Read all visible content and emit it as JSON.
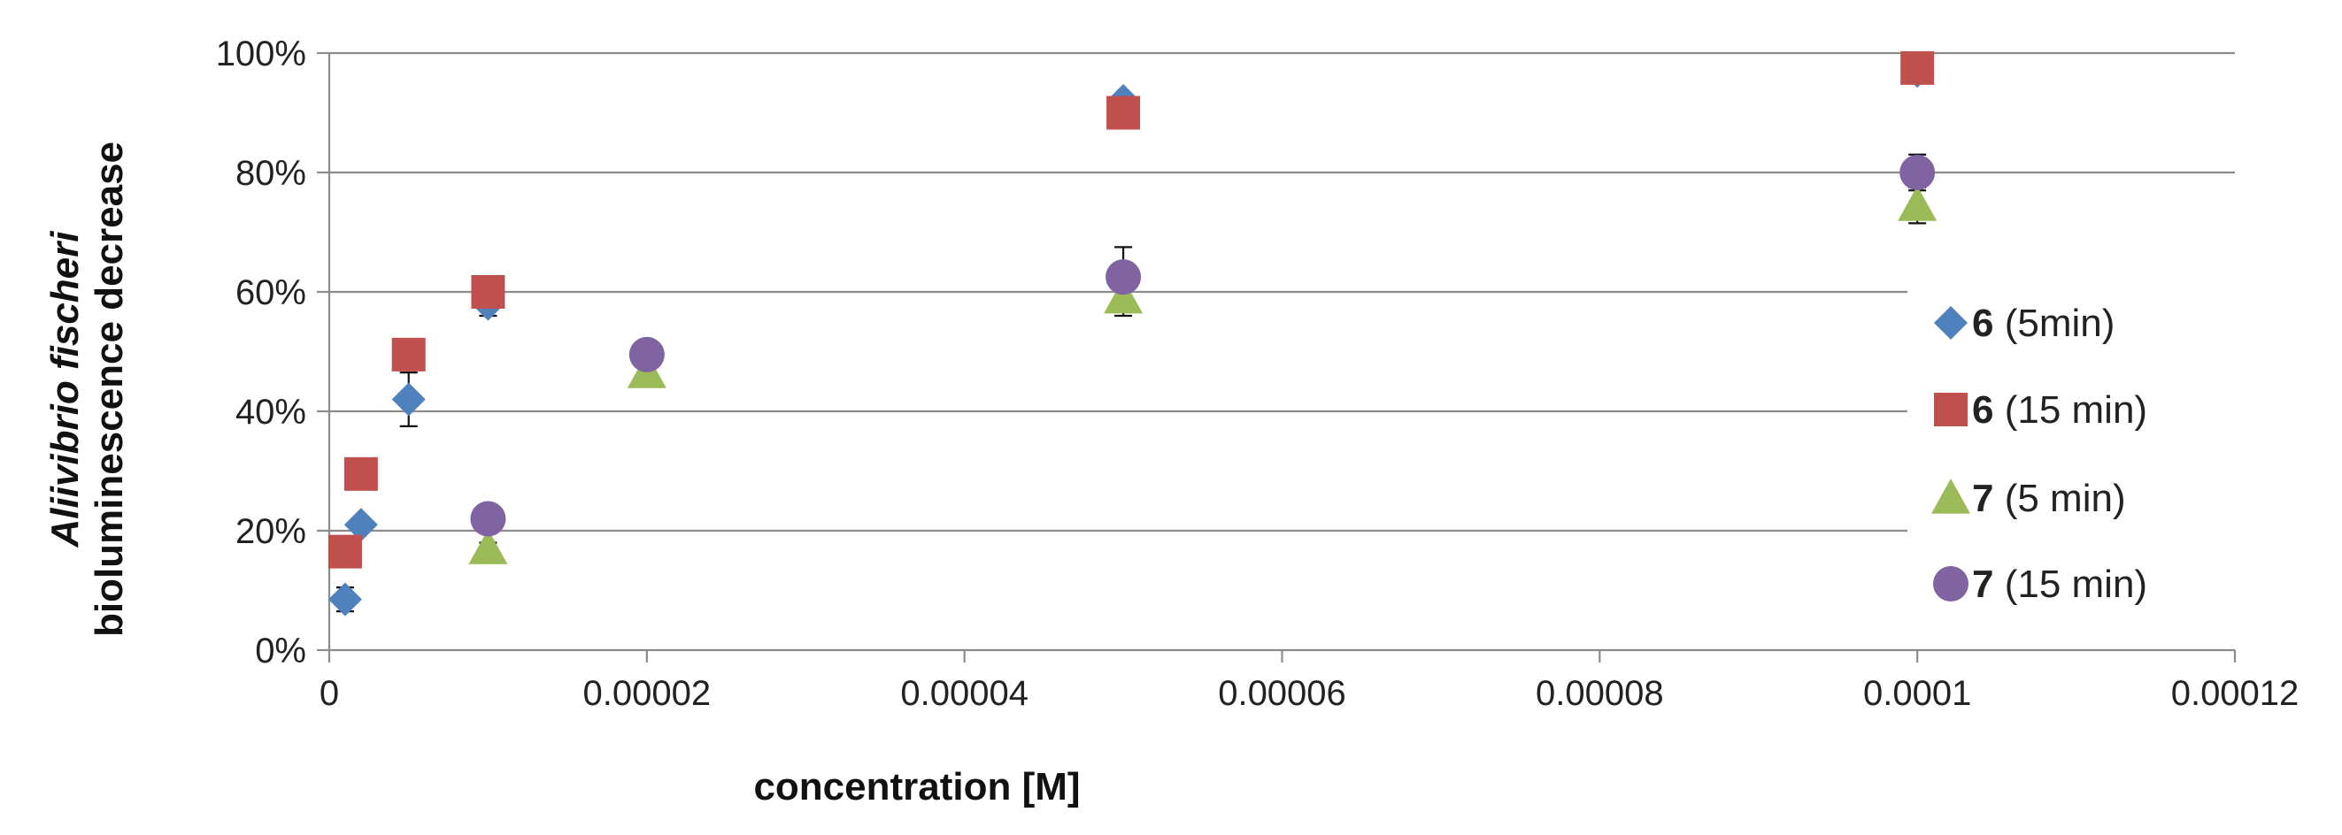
{
  "chart_data": {
    "type": "scatter",
    "xlabel": "concentration [M]",
    "ylabel_italic": "Aliivibrio fischeri",
    "ylabel": "bioluminescence decrease",
    "xlim": [
      0,
      0.00012
    ],
    "ylim": [
      0,
      1
    ],
    "x_ticks": [
      0,
      2e-05,
      4e-05,
      6e-05,
      8e-05,
      0.0001,
      0.00012
    ],
    "x_tick_labels": [
      "0",
      "0.00002",
      "0.00004",
      "0.00006",
      "0.00008",
      "0.0001",
      "0.00012"
    ],
    "y_ticks": [
      0,
      0.2,
      0.4,
      0.6,
      0.8,
      1.0
    ],
    "y_tick_labels": [
      "0%",
      "20%",
      "40%",
      "60%",
      "80%",
      "100%"
    ],
    "grid": "horizontal",
    "legend_position": "right",
    "series": [
      {
        "name_bold": "6",
        "name": " (5min)",
        "marker": "diamond",
        "color": "#4F81BD",
        "points": [
          {
            "x": 1e-06,
            "y": 0.085,
            "err": 0.02
          },
          {
            "x": 2e-06,
            "y": 0.21,
            "err": 0.01
          },
          {
            "x": 5e-06,
            "y": 0.42,
            "err": 0.045
          },
          {
            "x": 1e-05,
            "y": 0.58,
            "err": 0.02
          },
          {
            "x": 5e-05,
            "y": 0.92,
            "err": 0.01
          },
          {
            "x": 0.0001,
            "y": 0.97,
            "err": 0.01
          }
        ]
      },
      {
        "name_bold": "6",
        "name": " (15 min)",
        "marker": "square",
        "color": "#C0504D",
        "points": [
          {
            "x": 1e-06,
            "y": 0.165,
            "err": 0.01
          },
          {
            "x": 2e-06,
            "y": 0.295,
            "err": 0.01
          },
          {
            "x": 5e-06,
            "y": 0.495,
            "err": 0.025
          },
          {
            "x": 1e-05,
            "y": 0.6,
            "err": 0.015
          },
          {
            "x": 5e-05,
            "y": 0.9,
            "err": 0.01
          },
          {
            "x": 0.0001,
            "y": 0.975,
            "err": 0.01
          }
        ]
      },
      {
        "name_bold": "7",
        "name": " (5 min)",
        "marker": "triangle",
        "color": "#9BBB59",
        "points": [
          {
            "x": 1e-05,
            "y": 0.17,
            "err": 0.01
          },
          {
            "x": 2e-05,
            "y": 0.465,
            "err": 0.01
          },
          {
            "x": 5e-05,
            "y": 0.59,
            "err": 0.03
          },
          {
            "x": 0.0001,
            "y": 0.745,
            "err": 0.03
          }
        ]
      },
      {
        "name_bold": "7",
        "name": " (15 min)",
        "marker": "circle",
        "color": "#8064A2",
        "points": [
          {
            "x": 1e-05,
            "y": 0.22,
            "err": 0.01
          },
          {
            "x": 2e-05,
            "y": 0.495,
            "err": 0.01
          },
          {
            "x": 5e-05,
            "y": 0.625,
            "err": 0.05
          },
          {
            "x": 0.0001,
            "y": 0.8,
            "err": 0.03
          }
        ]
      }
    ]
  }
}
